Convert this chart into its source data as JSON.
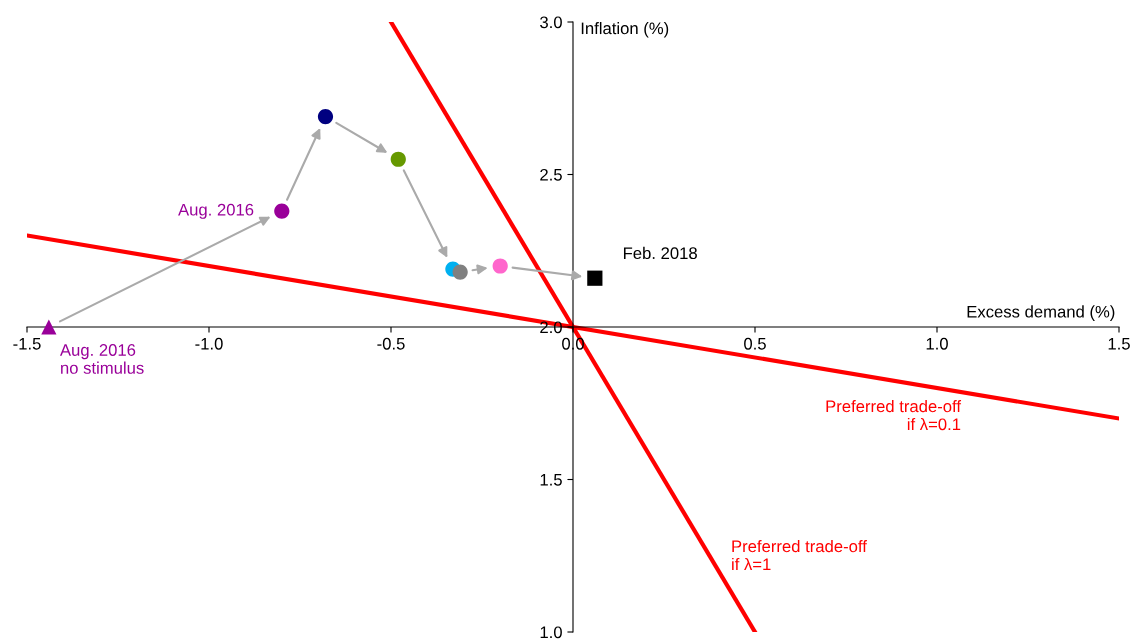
{
  "chart_data": {
    "type": "scatter",
    "xlabel": "Excess demand (%)",
    "ylabel": "Inflation (%)",
    "xlim": [
      -1.5,
      1.5
    ],
    "ylim": [
      1.0,
      3.0
    ],
    "xticks": [
      {
        "value": -1.5,
        "label": "-1.5"
      },
      {
        "value": -1.0,
        "label": "-1.0"
      },
      {
        "value": -0.5,
        "label": "-0.5"
      },
      {
        "value": 0,
        "label": "0.0"
      },
      {
        "value": 0.5,
        "label": "0.5"
      },
      {
        "value": 1.0,
        "label": "1.0"
      },
      {
        "value": 1.5,
        "label": "1.5"
      }
    ],
    "yticks": [
      {
        "value": 1.0,
        "label": "1.0"
      },
      {
        "value": 1.5,
        "label": "1.5"
      },
      {
        "value": 2.0,
        "label": "2.0"
      },
      {
        "value": 2.5,
        "label": "2.5"
      },
      {
        "value": 3.0,
        "label": "3.0"
      }
    ],
    "grid": false,
    "legend": false,
    "series": [
      {
        "type": "line",
        "color": "#ff0000",
        "x": [
          -1.5,
          1.5
        ],
        "values": [
          2.3,
          1.7
        ],
        "marker": "none"
      },
      {
        "type": "line",
        "color": "#ff0000",
        "x": [
          -0.5,
          0.5
        ],
        "values": [
          3.0,
          1.0
        ],
        "marker": "none"
      },
      {
        "marker": "triangle",
        "color": "#990099",
        "x": [
          -1.44
        ],
        "values": [
          2.0
        ]
      },
      {
        "marker": "circle",
        "colors": [
          "#990099",
          "#000080",
          "#669900",
          "#00b0f0",
          "#808080",
          "#ff66cc"
        ],
        "x": [
          -0.8,
          -0.68,
          -0.48,
          -0.33,
          -0.31,
          -0.2
        ],
        "values": [
          2.38,
          2.69,
          2.55,
          2.19,
          2.18,
          2.2
        ]
      },
      {
        "marker": "square",
        "color": "#000000",
        "x": [
          0.06
        ],
        "values": [
          2.16
        ]
      }
    ],
    "annotations": [
      {
        "text": "Aug. 2016\nno stimulus",
        "x": -1.44,
        "y": 2.0
      },
      {
        "text": "Aug. 2016",
        "x": -0.8,
        "y": 2.38
      },
      {
        "text": "Feb. 2018",
        "x": 0.06,
        "y": 2.16
      },
      "Preferred trade-off\nif λ=0.1",
      "Preferred trade-off\nif λ=1"
    ]
  }
}
